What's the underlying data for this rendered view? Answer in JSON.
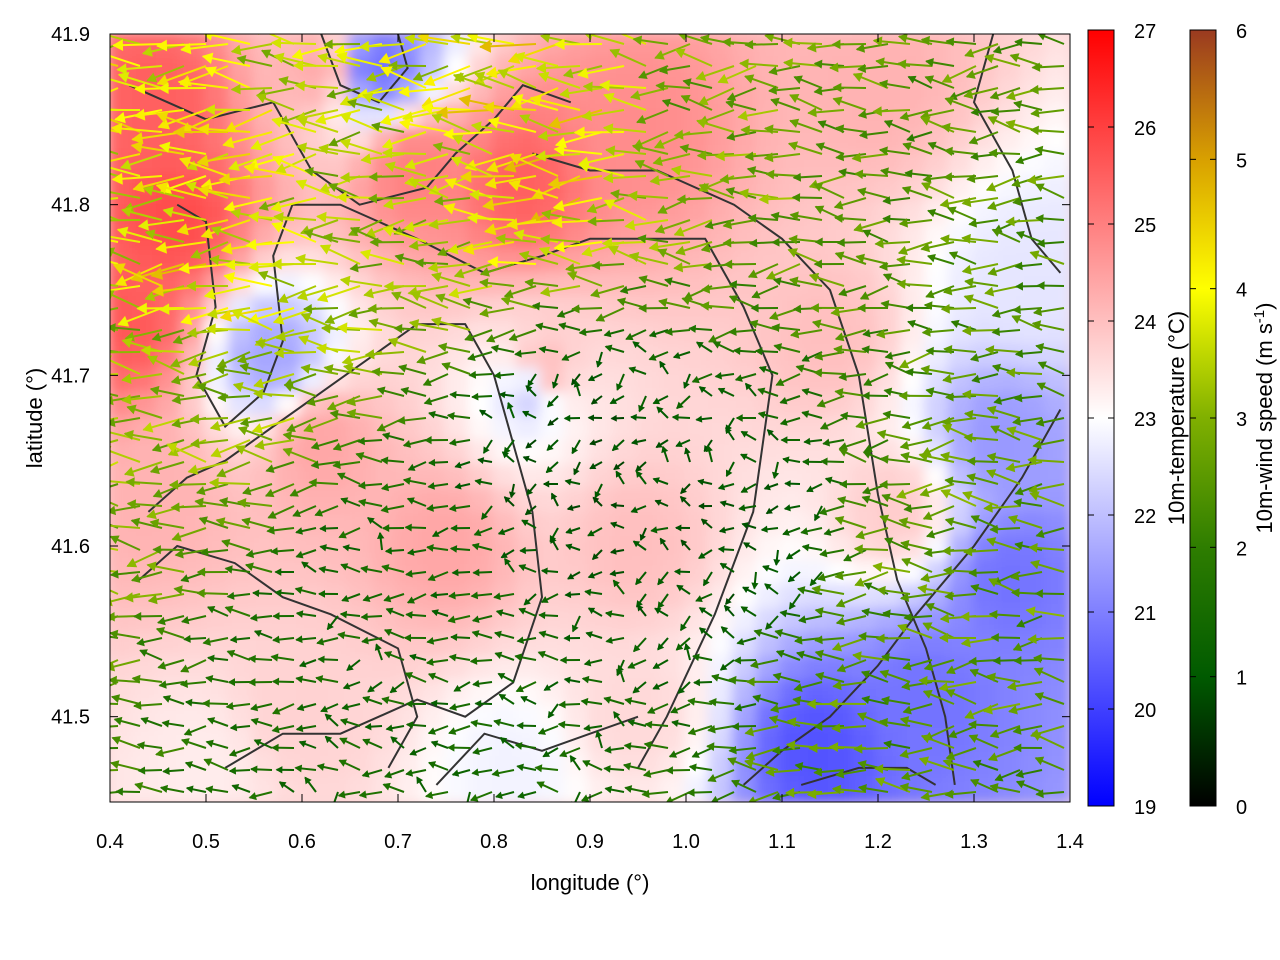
{
  "chart_data": {
    "type": "heatmap",
    "subtype": "temperature field with wind vectors and coastline contours",
    "xlabel": "longitude (°)",
    "ylabel": "latitude (°)",
    "xlim": [
      0.4,
      1.4
    ],
    "ylim": [
      41.45,
      41.9
    ],
    "xticks": [
      0.4,
      0.5,
      0.6,
      0.7,
      0.8,
      0.9,
      1.0,
      1.1,
      1.2,
      1.3,
      1.4
    ],
    "xtick_labels": [
      "0.4",
      "0.5",
      "0.6",
      "0.7",
      "0.8",
      "0.9",
      "1.0",
      "1.1",
      "1.2",
      "1.3",
      "1.4"
    ],
    "yticks": [
      41.5,
      41.6,
      41.7,
      41.8,
      41.9
    ],
    "ytick_labels": [
      "41.5",
      "41.6",
      "41.7",
      "41.8",
      "41.9"
    ],
    "temperature_colorbar": {
      "label": "10m-temperature (°C)",
      "range": [
        19,
        27
      ],
      "ticks": [
        "19",
        "20",
        "21",
        "22",
        "23",
        "24",
        "25",
        "26",
        "27"
      ],
      "colors": [
        "#0000ff",
        "#ffffff",
        "#ff0000"
      ]
    },
    "wind_colorbar": {
      "label_main": "10m-wind speed (m s",
      "label_sup": "-1",
      "label_end": ")",
      "range": [
        0,
        6
      ],
      "ticks": [
        "0",
        "1",
        "2",
        "3",
        "4",
        "5",
        "6"
      ],
      "colors": [
        "#000000",
        "#005a00",
        "#2e7d00",
        "#80b000",
        "#ffff00",
        "#d8a000",
        "#9a3a20"
      ]
    },
    "temperature_regions": [
      {
        "lon": 0.47,
        "lat": 41.79,
        "t": 25.8
      },
      {
        "lon": 0.45,
        "lat": 41.86,
        "t": 25.5
      },
      {
        "lon": 0.42,
        "lat": 41.73,
        "t": 25.6
      },
      {
        "lon": 0.83,
        "lat": 41.81,
        "t": 25.5
      },
      {
        "lon": 0.72,
        "lat": 41.82,
        "t": 25.0
      },
      {
        "lon": 0.95,
        "lat": 41.84,
        "t": 24.8
      },
      {
        "lon": 0.62,
        "lat": 41.88,
        "t": 24.3
      },
      {
        "lon": 1.2,
        "lat": 41.87,
        "t": 24.2
      },
      {
        "lon": 0.85,
        "lat": 41.7,
        "t": 24.2
      },
      {
        "lon": 0.62,
        "lat": 41.66,
        "t": 24.4
      },
      {
        "lon": 0.75,
        "lat": 41.6,
        "t": 24.4
      },
      {
        "lon": 0.45,
        "lat": 41.63,
        "t": 24.2
      },
      {
        "lon": 0.95,
        "lat": 41.6,
        "t": 24.0
      },
      {
        "lon": 1.15,
        "lat": 41.72,
        "t": 24.0
      },
      {
        "lon": 1.22,
        "lat": 41.62,
        "t": 23.8
      },
      {
        "lon": 0.6,
        "lat": 41.5,
        "t": 23.7
      },
      {
        "lon": 0.95,
        "lat": 41.5,
        "t": 23.6
      },
      {
        "lon": 0.5,
        "lat": 41.47,
        "t": 23.3
      },
      {
        "lon": 0.68,
        "lat": 41.88,
        "t": 20.8
      },
      {
        "lon": 0.57,
        "lat": 41.71,
        "t": 21.6
      },
      {
        "lon": 0.84,
        "lat": 41.69,
        "t": 22.2
      },
      {
        "lon": 1.14,
        "lat": 41.48,
        "t": 20.3
      },
      {
        "lon": 1.25,
        "lat": 41.51,
        "t": 20.8
      },
      {
        "lon": 1.34,
        "lat": 41.58,
        "t": 20.8
      },
      {
        "lon": 1.33,
        "lat": 41.66,
        "t": 21.4
      },
      {
        "lon": 0.82,
        "lat": 41.47,
        "t": 22.8
      },
      {
        "lon": 1.36,
        "lat": 41.75,
        "t": 22.6
      }
    ],
    "wind_regions": [
      {
        "lon": 0.5,
        "lat": 41.78,
        "speed": 4.0
      },
      {
        "lon": 0.85,
        "lat": 41.84,
        "speed": 4.1
      },
      {
        "lon": 0.7,
        "lat": 41.8,
        "speed": 3.1
      },
      {
        "lon": 1.05,
        "lat": 41.85,
        "speed": 2.8
      },
      {
        "lon": 0.45,
        "lat": 41.7,
        "speed": 3.0
      },
      {
        "lon": 1.25,
        "lat": 41.86,
        "speed": 2.5
      },
      {
        "lon": 1.3,
        "lat": 41.6,
        "speed": 2.6
      },
      {
        "lon": 1.2,
        "lat": 41.52,
        "speed": 2.5
      },
      {
        "lon": 0.9,
        "lat": 41.65,
        "speed": 0.9
      },
      {
        "lon": 0.7,
        "lat": 41.55,
        "speed": 1.4
      },
      {
        "lon": 1.05,
        "lat": 41.6,
        "speed": 1.0
      }
    ],
    "prevailing_wind_direction": "from east (westward flow)",
    "contour_color": "#333333"
  }
}
